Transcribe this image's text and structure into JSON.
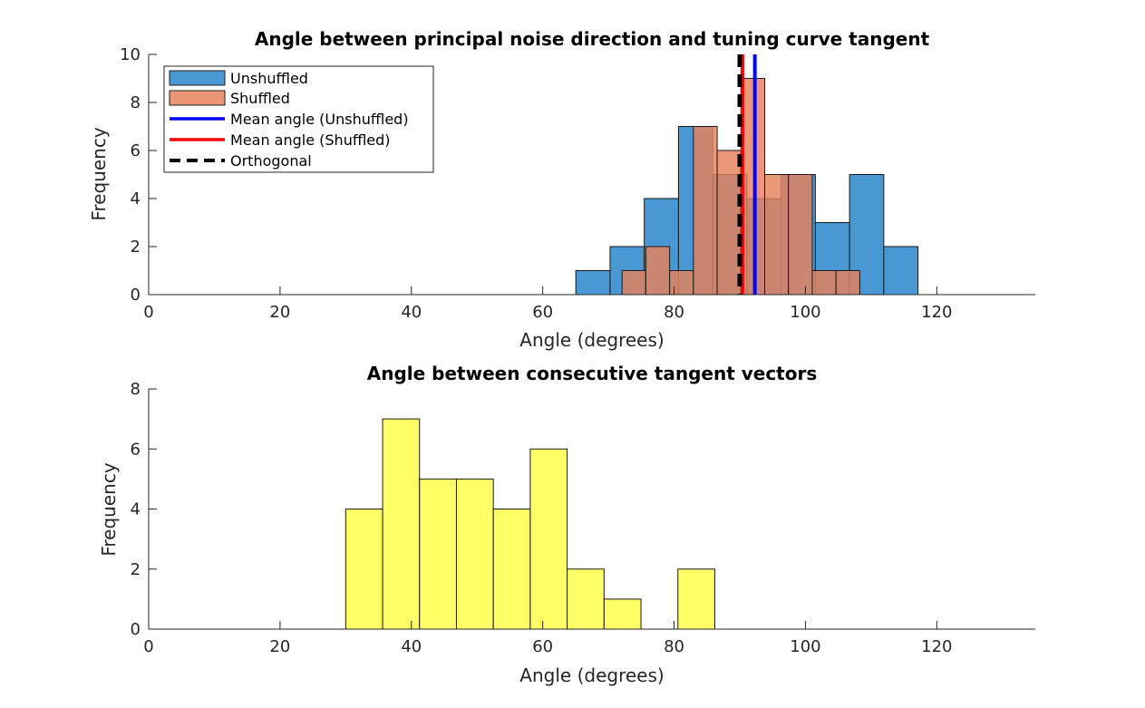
{
  "chart_data": [
    {
      "type": "bar",
      "title": "Angle between principal noise direction and tuning curve tangent",
      "xlabel": "Angle (degrees)",
      "ylabel": "Frequency",
      "xlim": [
        0,
        135
      ],
      "ylim": [
        0,
        10
      ],
      "xticks": [
        "0",
        "20",
        "40",
        "60",
        "80",
        "100",
        "120"
      ],
      "yticks": [
        "0",
        "2",
        "4",
        "6",
        "8",
        "10"
      ],
      "grid": false,
      "legend_position": "top-left",
      "series": [
        {
          "name": "Unshuffled",
          "color": "#4a98d3",
          "bin_width": 5.21,
          "bin_starts": [
            65.04,
            70.25,
            75.46,
            80.67,
            85.88,
            91.09,
            96.3,
            101.51,
            106.72,
            111.93
          ],
          "values": [
            1,
            2,
            4,
            7,
            5,
            4,
            5,
            3,
            5,
            2
          ]
        },
        {
          "name": "Shuffled",
          "color": "#e8825d",
          "bin_width": 3.62,
          "bin_starts": [
            72.08,
            75.7,
            79.32,
            82.94,
            86.56,
            90.18,
            93.8,
            97.42,
            101.04,
            104.66
          ],
          "values": [
            1,
            2,
            1,
            7,
            6,
            9,
            5,
            5,
            1,
            1
          ]
        }
      ],
      "lines": [
        {
          "name": "Mean angle (Unshuffled)",
          "x": 92.3,
          "color": "#0000ff",
          "style": "solid"
        },
        {
          "name": "Mean angle (Shuffled)",
          "x": 90.4,
          "color": "#ff0000",
          "style": "solid"
        },
        {
          "name": "Orthogonal",
          "x": 90,
          "color": "#000000",
          "style": "dashed"
        }
      ]
    },
    {
      "type": "bar",
      "title": "Angle between consecutive tangent vectors",
      "xlabel": "Angle (degrees)",
      "ylabel": "Frequency",
      "xlim": [
        0,
        135
      ],
      "ylim": [
        0,
        8
      ],
      "xticks": [
        "0",
        "20",
        "40",
        "60",
        "80",
        "100",
        "120"
      ],
      "yticks": [
        "0",
        "2",
        "4",
        "6",
        "8"
      ],
      "grid": false,
      "series": [
        {
          "color": "#ffff66",
          "bin_width": 5.62,
          "bin_starts": [
            30.0,
            35.62,
            41.24,
            46.86,
            52.48,
            58.1,
            63.72,
            69.34,
            74.96,
            80.58
          ],
          "values": [
            4,
            7,
            5,
            5,
            4,
            6,
            2,
            1,
            0,
            2
          ]
        }
      ]
    }
  ]
}
